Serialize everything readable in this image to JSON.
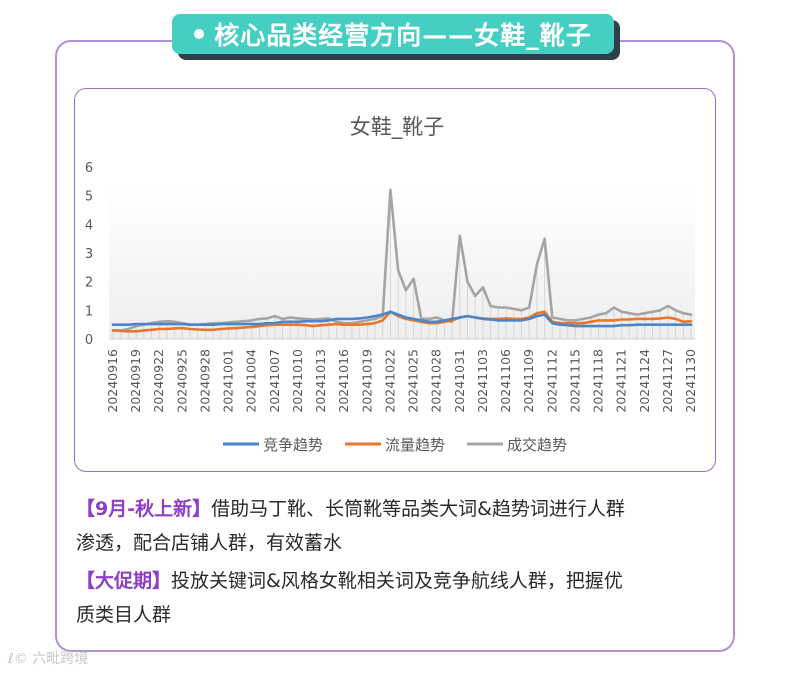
{
  "header": {
    "title": "核心品类经营方向——女鞋_靴子"
  },
  "chart_data": {
    "type": "line",
    "title": "女鞋_靴子",
    "xlabel": "",
    "ylabel": "",
    "ylim": [
      0,
      6
    ],
    "yticks": [
      0,
      1,
      2,
      3,
      4,
      5,
      6
    ],
    "grid": false,
    "legend_position": "bottom",
    "x": [
      "20240916",
      "20240917",
      "20240918",
      "20240919",
      "20240920",
      "20240921",
      "20240922",
      "20240923",
      "20240924",
      "20240925",
      "20240926",
      "20240927",
      "20240928",
      "20240929",
      "20240930",
      "20241001",
      "20241002",
      "20241003",
      "20241004",
      "20241005",
      "20241006",
      "20241007",
      "20241008",
      "20241009",
      "20241010",
      "20241011",
      "20241012",
      "20241013",
      "20241014",
      "20241015",
      "20241016",
      "20241017",
      "20241018",
      "20241019",
      "20241020",
      "20241021",
      "20241022",
      "20241023",
      "20241024",
      "20241025",
      "20241026",
      "20241027",
      "20241028",
      "20241029",
      "20241030",
      "20241031",
      "20241101",
      "20241102",
      "20241103",
      "20241104",
      "20241105",
      "20241106",
      "20241107",
      "20241108",
      "20241109",
      "20241110",
      "20241111",
      "20241112",
      "20241113",
      "20241114",
      "20241115",
      "20241116",
      "20241117",
      "20241118",
      "20241119",
      "20241120",
      "20241121",
      "20241122",
      "20241123",
      "20241124",
      "20241125",
      "20241126",
      "20241127",
      "20241128",
      "20241129",
      "20241130"
    ],
    "xticks": [
      "20240916",
      "20240919",
      "20240922",
      "20240925",
      "20240928",
      "20241001",
      "20241004",
      "20241007",
      "20241010",
      "20241013",
      "20241016",
      "20241019",
      "20241022",
      "20241025",
      "20241028",
      "20241031",
      "20241103",
      "20241106",
      "20241109",
      "20241112",
      "20241115",
      "20241118",
      "20241121",
      "20241124",
      "20241127",
      "20241130"
    ],
    "series": [
      {
        "name": "竞争趋势",
        "color": "#4a86c8",
        "values": [
          0.5,
          0.5,
          0.5,
          0.52,
          0.52,
          0.52,
          0.52,
          0.52,
          0.52,
          0.52,
          0.5,
          0.5,
          0.5,
          0.5,
          0.52,
          0.52,
          0.52,
          0.52,
          0.52,
          0.52,
          0.55,
          0.55,
          0.6,
          0.6,
          0.6,
          0.62,
          0.62,
          0.62,
          0.65,
          0.7,
          0.7,
          0.7,
          0.72,
          0.75,
          0.8,
          0.85,
          0.95,
          0.85,
          0.75,
          0.7,
          0.65,
          0.6,
          0.6,
          0.65,
          0.7,
          0.75,
          0.8,
          0.75,
          0.7,
          0.68,
          0.65,
          0.65,
          0.65,
          0.65,
          0.7,
          0.8,
          0.85,
          0.55,
          0.5,
          0.48,
          0.45,
          0.45,
          0.45,
          0.45,
          0.45,
          0.45,
          0.48,
          0.48,
          0.5,
          0.5,
          0.5,
          0.5,
          0.5,
          0.5,
          0.5,
          0.5
        ]
      },
      {
        "name": "流量趋势",
        "color": "#e8762d",
        "values": [
          0.3,
          0.28,
          0.27,
          0.27,
          0.3,
          0.32,
          0.35,
          0.35,
          0.37,
          0.38,
          0.35,
          0.33,
          0.32,
          0.32,
          0.35,
          0.37,
          0.38,
          0.4,
          0.42,
          0.45,
          0.48,
          0.5,
          0.5,
          0.5,
          0.5,
          0.48,
          0.45,
          0.48,
          0.5,
          0.52,
          0.5,
          0.5,
          0.5,
          0.52,
          0.55,
          0.65,
          0.95,
          0.8,
          0.7,
          0.65,
          0.6,
          0.55,
          0.55,
          0.6,
          0.65,
          0.75,
          0.8,
          0.75,
          0.72,
          0.7,
          0.7,
          0.72,
          0.7,
          0.7,
          0.75,
          0.9,
          0.95,
          0.6,
          0.55,
          0.55,
          0.55,
          0.55,
          0.6,
          0.65,
          0.65,
          0.65,
          0.68,
          0.68,
          0.7,
          0.7,
          0.7,
          0.72,
          0.75,
          0.7,
          0.6,
          0.62
        ]
      },
      {
        "name": "成交趋势",
        "color": "#a5a5a5",
        "values": [
          0.3,
          0.3,
          0.35,
          0.45,
          0.5,
          0.55,
          0.6,
          0.62,
          0.6,
          0.55,
          0.5,
          0.5,
          0.52,
          0.55,
          0.55,
          0.58,
          0.6,
          0.62,
          0.65,
          0.7,
          0.72,
          0.8,
          0.7,
          0.75,
          0.72,
          0.7,
          0.68,
          0.7,
          0.72,
          0.6,
          0.55,
          0.55,
          0.6,
          0.65,
          0.7,
          0.8,
          5.2,
          2.4,
          1.7,
          2.1,
          0.7,
          0.7,
          0.75,
          0.65,
          0.6,
          3.6,
          2.0,
          1.5,
          1.8,
          1.15,
          1.1,
          1.1,
          1.05,
          1.0,
          1.1,
          2.6,
          3.5,
          0.75,
          0.7,
          0.65,
          0.65,
          0.7,
          0.75,
          0.85,
          0.9,
          1.1,
          0.95,
          0.9,
          0.85,
          0.9,
          0.95,
          1.0,
          1.15,
          1.0,
          0.9,
          0.85
        ]
      }
    ]
  },
  "desc": {
    "p1_tag": "【9月-秋上新】",
    "p1_line1": "借助马丁靴、长筒靴等品类大词&趋势词进行人群",
    "p1_line2": "渗透，配合店铺人群，有效蓄水",
    "p2_tag": "【大促期】",
    "p2_line1": "投放关键词&风格女靴相关词及竞争航线人群，把握优",
    "p2_line2": "质类目人群"
  },
  "watermark": {
    "text": "六毗跨境"
  }
}
